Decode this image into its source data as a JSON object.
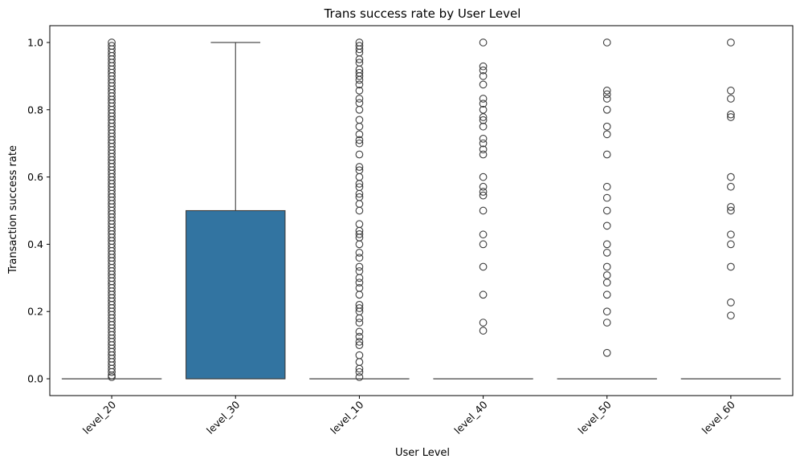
{
  "chart_data": {
    "type": "box",
    "title": "Trans success rate by User Level",
    "xlabel": "User Level",
    "ylabel": "Transaction success rate",
    "ylim": [
      -0.05,
      1.05
    ],
    "yticks": [
      "0.0",
      "0.2",
      "0.4",
      "0.6",
      "0.8",
      "1.0"
    ],
    "categories": [
      "level_20",
      "level_30",
      "level_10",
      "level_40",
      "level_50",
      "level_60"
    ],
    "box_color": "#3274a1",
    "outlier_color": "#3d3d3d",
    "boxes": [
      {
        "category": "level_20",
        "q1": 0.0,
        "median": 0.0,
        "q3": 0.0,
        "whisker_low": 0.0,
        "whisker_high": 0.0,
        "outliers": [
          0.005,
          0.01,
          0.02,
          0.03,
          0.04,
          0.05,
          0.06,
          0.07,
          0.08,
          0.09,
          0.1,
          0.11,
          0.12,
          0.13,
          0.14,
          0.15,
          0.16,
          0.17,
          0.18,
          0.19,
          0.2,
          0.21,
          0.22,
          0.23,
          0.24,
          0.25,
          0.26,
          0.27,
          0.28,
          0.29,
          0.3,
          0.31,
          0.32,
          0.33,
          0.34,
          0.35,
          0.36,
          0.37,
          0.38,
          0.39,
          0.4,
          0.41,
          0.42,
          0.43,
          0.44,
          0.45,
          0.46,
          0.47,
          0.48,
          0.49,
          0.5,
          0.51,
          0.52,
          0.53,
          0.54,
          0.55,
          0.56,
          0.57,
          0.58,
          0.59,
          0.6,
          0.61,
          0.62,
          0.63,
          0.64,
          0.65,
          0.66,
          0.67,
          0.68,
          0.69,
          0.7,
          0.71,
          0.72,
          0.73,
          0.74,
          0.75,
          0.76,
          0.77,
          0.78,
          0.79,
          0.8,
          0.81,
          0.82,
          0.83,
          0.84,
          0.85,
          0.86,
          0.87,
          0.88,
          0.89,
          0.9,
          0.91,
          0.92,
          0.93,
          0.94,
          0.95,
          0.96,
          0.97,
          0.98,
          0.99,
          1.0
        ]
      },
      {
        "category": "level_30",
        "q1": 0.0,
        "median": 0.0,
        "q3": 0.5,
        "whisker_low": 0.0,
        "whisker_high": 1.0,
        "outliers": []
      },
      {
        "category": "level_10",
        "q1": 0.0,
        "median": 0.0,
        "q3": 0.0,
        "whisker_low": 0.0,
        "whisker_high": 0.0,
        "outliers": [
          0.005,
          0.02,
          0.03,
          0.05,
          0.07,
          0.1,
          0.11,
          0.125,
          0.14,
          0.167,
          0.18,
          0.2,
          0.21,
          0.22,
          0.25,
          0.27,
          0.286,
          0.3,
          0.32,
          0.333,
          0.36,
          0.375,
          0.4,
          0.42,
          0.43,
          0.44,
          0.46,
          0.5,
          0.52,
          0.54,
          0.55,
          0.57,
          0.58,
          0.6,
          0.62,
          0.63,
          0.667,
          0.7,
          0.71,
          0.727,
          0.75,
          0.77,
          0.8,
          0.82,
          0.833,
          0.857,
          0.875,
          0.889,
          0.9,
          0.91,
          0.92,
          0.94,
          0.95,
          0.97,
          0.98,
          0.99,
          1.0
        ]
      },
      {
        "category": "level_40",
        "q1": 0.0,
        "median": 0.0,
        "q3": 0.0,
        "whisker_low": 0.0,
        "whisker_high": 0.0,
        "outliers": [
          0.143,
          0.167,
          0.25,
          0.333,
          0.4,
          0.429,
          0.5,
          0.545,
          0.556,
          0.571,
          0.6,
          0.667,
          0.682,
          0.7,
          0.714,
          0.75,
          0.769,
          0.778,
          0.8,
          0.818,
          0.833,
          0.875,
          0.9,
          0.917,
          0.929,
          1.0
        ]
      },
      {
        "category": "level_50",
        "q1": 0.0,
        "median": 0.0,
        "q3": 0.0,
        "whisker_low": 0.0,
        "whisker_high": 0.0,
        "outliers": [
          0.077,
          0.167,
          0.2,
          0.25,
          0.286,
          0.308,
          0.333,
          0.375,
          0.4,
          0.455,
          0.5,
          0.538,
          0.571,
          0.667,
          0.727,
          0.75,
          0.8,
          0.833,
          0.846,
          0.857,
          1.0
        ]
      },
      {
        "category": "level_60",
        "q1": 0.0,
        "median": 0.0,
        "q3": 0.0,
        "whisker_low": 0.0,
        "whisker_high": 0.0,
        "outliers": [
          0.188,
          0.227,
          0.333,
          0.4,
          0.429,
          0.5,
          0.511,
          0.571,
          0.6,
          0.778,
          0.786,
          0.833,
          0.857,
          1.0
        ]
      }
    ]
  }
}
